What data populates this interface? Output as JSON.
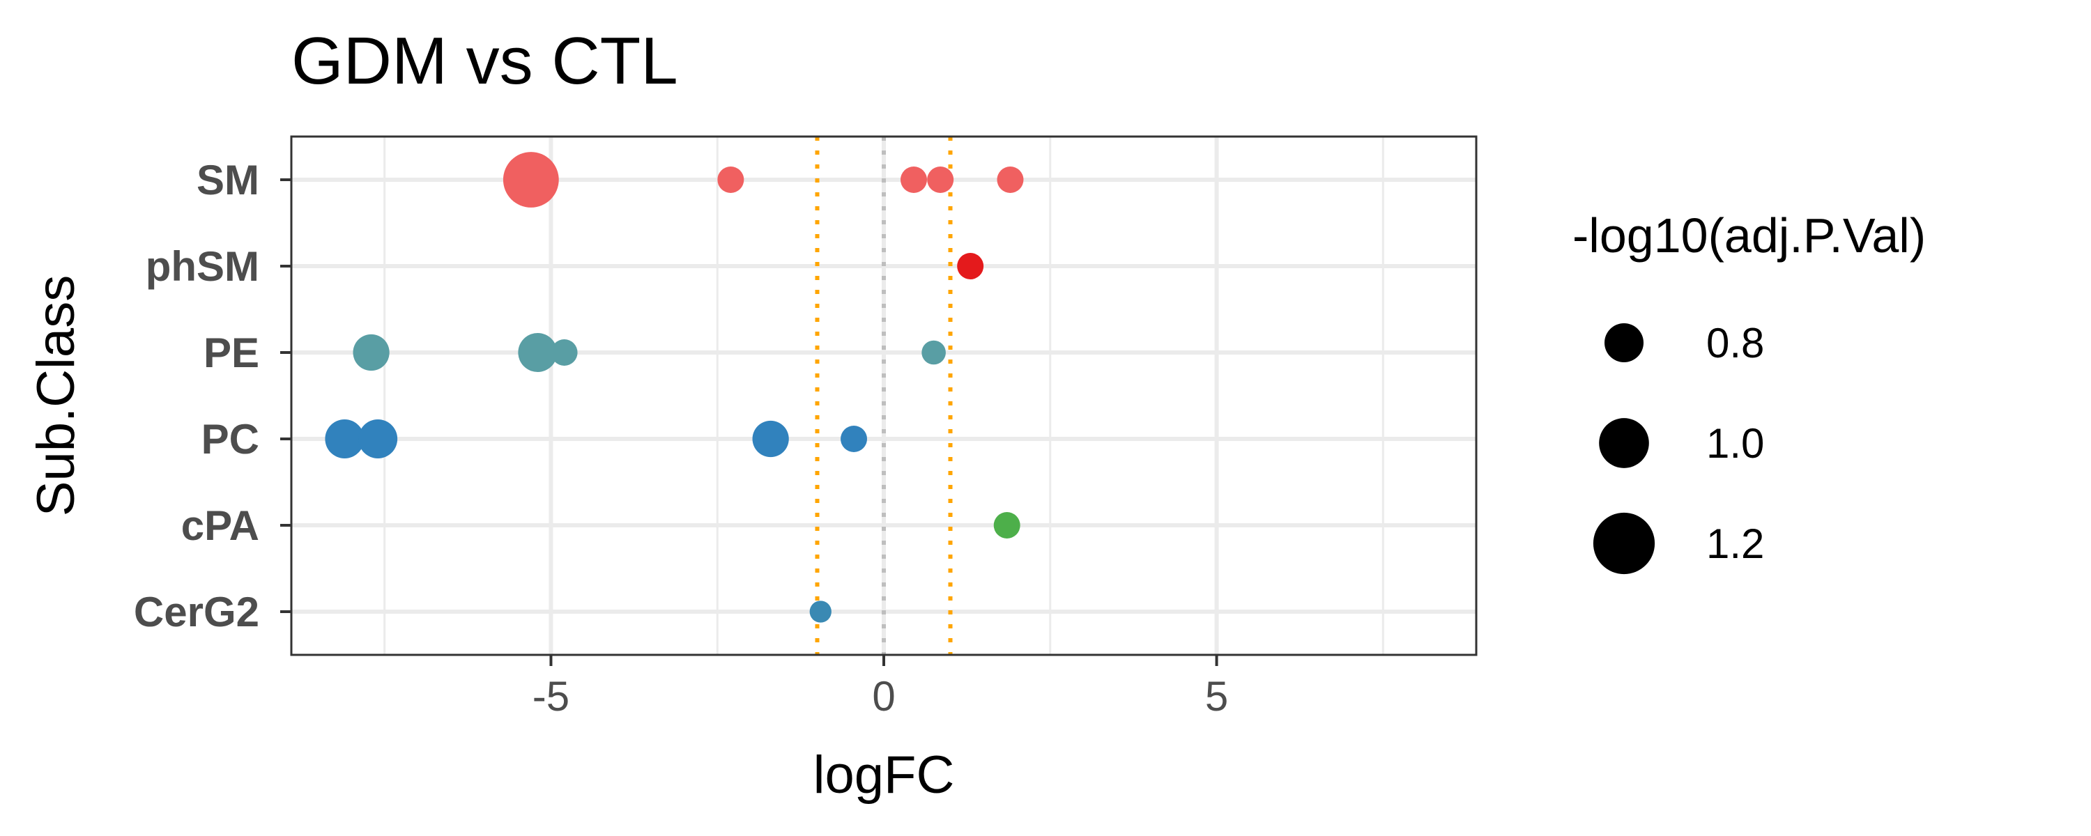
{
  "chart_data": {
    "type": "scatter",
    "title": "GDM vs CTL",
    "xlabel": "logFC",
    "ylabel": "Sub.Class",
    "xlim": [
      -8.9,
      8.9
    ],
    "x_ticks": [
      -5,
      0,
      5
    ],
    "x_tick_labels": [
      "-5",
      "0",
      "5"
    ],
    "categories": [
      "CerG2",
      "cPA",
      "PC",
      "PE",
      "phSM",
      "SM"
    ],
    "grid": true,
    "vlines": [
      {
        "x": -1,
        "style": "dotted",
        "color": "#FFA500"
      },
      {
        "x": 0,
        "style": "dotted",
        "color": "#BEBEBE"
      },
      {
        "x": 1,
        "style": "dotted",
        "color": "#FFA500"
      }
    ],
    "legend": {
      "title": "-log10(adj.P.Val)",
      "position": "right",
      "entries": [
        {
          "label": "0.8",
          "value": 0.8
        },
        {
          "label": "1.0",
          "value": 1.0
        },
        {
          "label": "1.2",
          "value": 1.2
        }
      ]
    },
    "colors": {
      "SM": "#F06060",
      "phSM": "#E41A1C",
      "PE": "#599EA4",
      "PC": "#3182BD",
      "cPA": "#4DAF4A",
      "CerG2": "#3A89B3"
    },
    "points": [
      {
        "category": "SM",
        "x": -5.3,
        "size": 1.3
      },
      {
        "category": "SM",
        "x": -2.3,
        "size": 0.75
      },
      {
        "category": "SM",
        "x": 0.45,
        "size": 0.75
      },
      {
        "category": "SM",
        "x": 0.85,
        "size": 0.75
      },
      {
        "category": "SM",
        "x": 1.9,
        "size": 0.75
      },
      {
        "category": "phSM",
        "x": 1.3,
        "size": 0.75
      },
      {
        "category": "PE",
        "x": -7.7,
        "size": 0.95
      },
      {
        "category": "PE",
        "x": -5.2,
        "size": 1.0
      },
      {
        "category": "PE",
        "x": -4.8,
        "size": 0.75
      },
      {
        "category": "PE",
        "x": 0.75,
        "size": 0.7
      },
      {
        "category": "PC",
        "x": -8.1,
        "size": 1.0
      },
      {
        "category": "PC",
        "x": -7.6,
        "size": 1.0
      },
      {
        "category": "PC",
        "x": -1.7,
        "size": 0.95
      },
      {
        "category": "PC",
        "x": -0.45,
        "size": 0.75
      },
      {
        "category": "cPA",
        "x": 1.85,
        "size": 0.75
      },
      {
        "category": "CerG2",
        "x": -0.95,
        "size": 0.65
      }
    ]
  }
}
